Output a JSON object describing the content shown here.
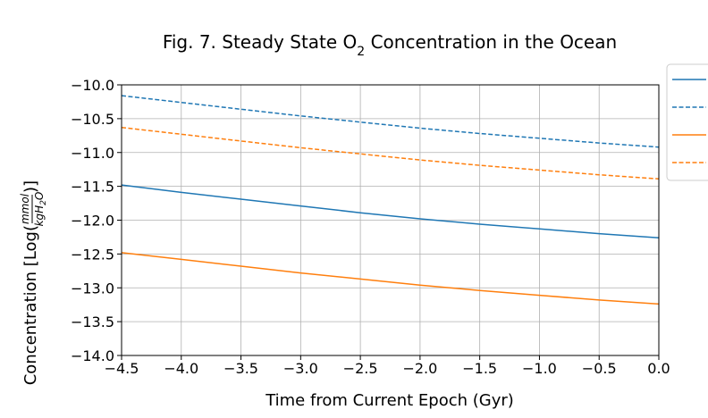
{
  "chart_data": {
    "type": "line",
    "title": "Fig. 7. Steady State O",
    "title_sub": "2",
    "title_suffix": " Concentration in the Ocean",
    "xlabel": "Time from Current Epoch (Gyr)",
    "ylabel_prefix": "Concentration [Log(",
    "ylabel_num": "mmol",
    "ylabel_den": "kgH",
    "ylabel_den_sub": "2",
    "ylabel_den_end": "O",
    "ylabel_suffix": ")]",
    "xlim": [
      -4.5,
      0.0
    ],
    "ylim": [
      -14.0,
      -10.0
    ],
    "xticks": [
      -4.5,
      -4.0,
      -3.5,
      -3.0,
      -2.5,
      -2.0,
      -1.5,
      -1.0,
      -0.5,
      0.0
    ],
    "xtick_labels": [
      "−4.5",
      "−4.0",
      "−3.5",
      "−3.0",
      "−2.5",
      "−2.0",
      "−1.5",
      "−1.0",
      "−0.5",
      "0.0"
    ],
    "yticks": [
      -10.0,
      -10.5,
      -11.0,
      -11.5,
      -12.0,
      -12.5,
      -13.0,
      -13.5,
      -14.0
    ],
    "ytick_labels": [
      "−10.0",
      "−10.5",
      "−11.0",
      "−11.5",
      "−12.0",
      "−12.5",
      "−13.0",
      "−13.5",
      "−14.0"
    ],
    "grid": true,
    "legend_position": "upper right, outside plot area (partially cropped)",
    "x": [
      -4.5,
      -4.0,
      -3.5,
      -3.0,
      -2.5,
      -2.0,
      -1.5,
      -1.0,
      -0.5,
      0.0
    ],
    "series": [
      {
        "color": "#1f77b4",
        "linestyle": "solid",
        "values": [
          -11.48,
          -11.59,
          -11.69,
          -11.79,
          -11.89,
          -11.98,
          -12.06,
          -12.13,
          -12.2,
          -12.26
        ]
      },
      {
        "color": "#1f77b4",
        "linestyle": "dashed",
        "values": [
          -10.16,
          -10.26,
          -10.36,
          -10.46,
          -10.55,
          -10.64,
          -10.72,
          -10.79,
          -10.86,
          -10.92
        ]
      },
      {
        "color": "#ff7f0e",
        "linestyle": "solid",
        "values": [
          -12.48,
          -12.58,
          -12.68,
          -12.78,
          -12.87,
          -12.96,
          -13.04,
          -13.11,
          -13.18,
          -13.24
        ]
      },
      {
        "color": "#ff7f0e",
        "linestyle": "dashed",
        "values": [
          -10.63,
          -10.73,
          -10.83,
          -10.93,
          -11.02,
          -11.11,
          -11.19,
          -11.26,
          -11.33,
          -11.39
        ]
      }
    ]
  }
}
